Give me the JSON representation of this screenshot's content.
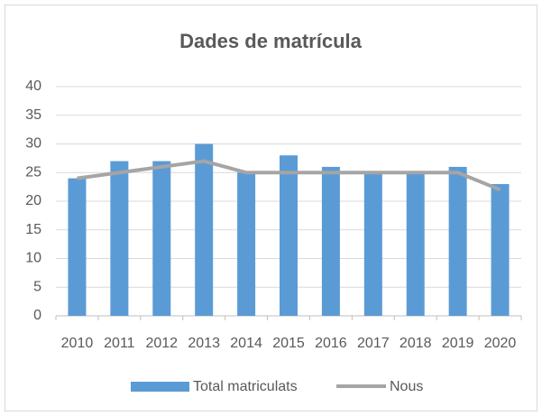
{
  "chart_data": {
    "type": "bar",
    "title": "Dades de matrícula",
    "categories": [
      "2010",
      "2011",
      "2012",
      "2013",
      "2014",
      "2015",
      "2016",
      "2017",
      "2018",
      "2019",
      "2020"
    ],
    "series": [
      {
        "name": "Total matriculats",
        "type": "bar",
        "color": "#5b9bd5",
        "values": [
          24,
          27,
          27,
          30,
          25,
          28,
          26,
          25,
          25,
          26,
          23
        ]
      },
      {
        "name": "Nous",
        "type": "line",
        "color": "#a5a5a5",
        "values": [
          24,
          25,
          26,
          27,
          25,
          25,
          25,
          25,
          25,
          25,
          22
        ]
      }
    ],
    "ylim": [
      0,
      40
    ],
    "yticks": [
      0,
      5,
      10,
      15,
      20,
      25,
      30,
      35,
      40
    ],
    "grid": true,
    "legend": "bottom"
  }
}
